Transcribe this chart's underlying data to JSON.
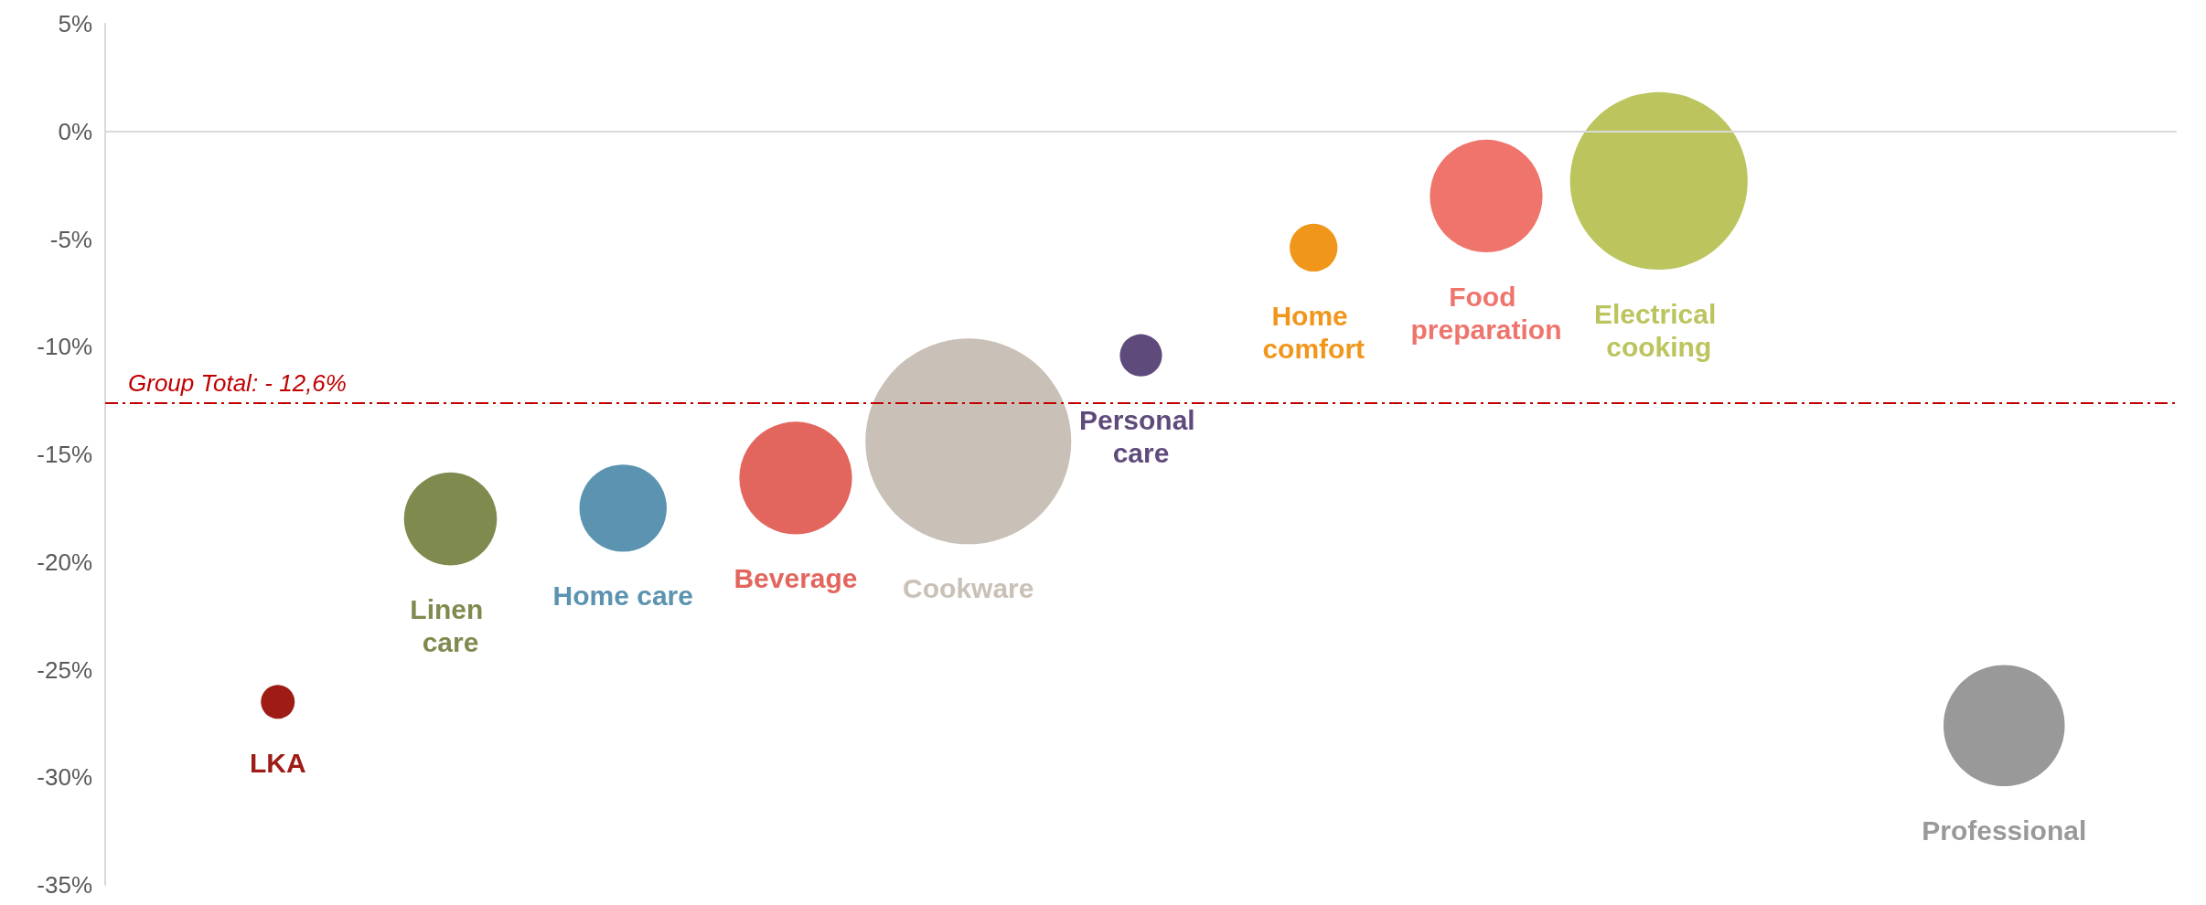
{
  "chart_data": {
    "type": "bubble",
    "categories": [
      null,
      null,
      null,
      null,
      null,
      null,
      null,
      null,
      null,
      null,
      null,
      null,
      null
    ],
    "ylim": [
      -35,
      5
    ],
    "yticks": [
      {
        "value": -35,
        "label": "-35%"
      },
      {
        "value": -30,
        "label": "-30%"
      },
      {
        "value": -25,
        "label": "-25%"
      },
      {
        "value": -20,
        "label": "-20%"
      },
      {
        "value": -15,
        "label": "-15%"
      },
      {
        "value": -10,
        "label": "-10%"
      },
      {
        "value": -5,
        "label": "-5%"
      },
      {
        "value": 0,
        "label": "0%"
      },
      {
        "value": 5,
        "label": "5%"
      }
    ],
    "grid": false,
    "legend": false,
    "series": [
      {
        "name": "LKA",
        "color": "#9e1b16",
        "values": [
          null,
          -26.5,
          null,
          null,
          null,
          null,
          null,
          null,
          null,
          null,
          null,
          null,
          null
        ],
        "sizes": [
          null,
          0.027,
          null,
          null,
          null,
          null,
          null,
          null,
          null,
          null,
          null,
          null,
          null
        ]
      },
      {
        "name": "Linen care",
        "color": "#7f8a4e",
        "values": [
          null,
          null,
          -18.0,
          null,
          null,
          null,
          null,
          null,
          null,
          null,
          null,
          null,
          null
        ],
        "sizes": [
          null,
          null,
          0.204,
          null,
          null,
          null,
          null,
          null,
          null,
          null,
          null,
          null,
          null
        ]
      },
      {
        "name": "Home care",
        "color": "#5b93b0",
        "values": [
          null,
          null,
          null,
          -17.5,
          null,
          null,
          null,
          null,
          null,
          null,
          null,
          null,
          null
        ],
        "sizes": [
          null,
          null,
          null,
          0.18,
          null,
          null,
          null,
          null,
          null,
          null,
          null,
          null,
          null
        ]
      },
      {
        "name": "Beverage",
        "color": "#e2665e",
        "values": [
          null,
          null,
          null,
          null,
          -16.1,
          null,
          null,
          null,
          null,
          null,
          null,
          null,
          null
        ],
        "sizes": [
          null,
          null,
          null,
          null,
          0.3,
          null,
          null,
          null,
          null,
          null,
          null,
          null,
          null
        ]
      },
      {
        "name": "Cookware",
        "color": "#c9c1b7",
        "values": [
          null,
          null,
          null,
          null,
          null,
          -14.4,
          null,
          null,
          null,
          null,
          null,
          null,
          null
        ],
        "sizes": [
          null,
          null,
          null,
          null,
          null,
          1,
          null,
          null,
          null,
          null,
          null,
          null,
          null
        ]
      },
      {
        "name": "Personal care",
        "color": "#5f4b7b",
        "values": [
          null,
          null,
          null,
          null,
          null,
          null,
          -10.4,
          null,
          null,
          null,
          null,
          null,
          null
        ],
        "sizes": [
          null,
          null,
          null,
          null,
          null,
          null,
          0.042,
          null,
          null,
          null,
          null,
          null,
          null
        ]
      },
      {
        "name": "Home comfort",
        "color": "#f0961b",
        "values": [
          null,
          null,
          null,
          null,
          null,
          null,
          null,
          -5.4,
          null,
          null,
          null,
          null,
          null
        ],
        "sizes": [
          null,
          null,
          null,
          null,
          null,
          null,
          null,
          0.054,
          null,
          null,
          null,
          null,
          null
        ]
      },
      {
        "name": "Food preparation",
        "color": "#ef746c",
        "values": [
          null,
          null,
          null,
          null,
          null,
          null,
          null,
          null,
          -3.0,
          null,
          null,
          null,
          null
        ],
        "sizes": [
          null,
          null,
          null,
          null,
          null,
          null,
          null,
          null,
          0.3,
          null,
          null,
          null,
          null
        ]
      },
      {
        "name": "Electrical cooking",
        "color": "#bcc45e",
        "values": [
          null,
          null,
          null,
          null,
          null,
          null,
          null,
          null,
          null,
          -2.3,
          null,
          null,
          null
        ],
        "sizes": [
          null,
          null,
          null,
          null,
          null,
          null,
          null,
          null,
          null,
          0.745,
          null,
          null,
          null
        ]
      },
      {
        "name": "Professional",
        "color": "#999999",
        "values": [
          null,
          null,
          null,
          null,
          null,
          null,
          null,
          null,
          null,
          null,
          null,
          -27.6,
          null
        ],
        "sizes": [
          null,
          null,
          null,
          null,
          null,
          null,
          null,
          null,
          null,
          null,
          null,
          0.347,
          null
        ]
      }
    ],
    "ref_lines": [
      {
        "axis": "y",
        "value": 0,
        "label": null,
        "color": "#d9d9d9",
        "line_style": "solid"
      },
      {
        "axis": "y",
        "value": -12.6,
        "label": "Group Total: - 12,6%",
        "color": "#c00000",
        "line_style": "dashed"
      }
    ]
  }
}
